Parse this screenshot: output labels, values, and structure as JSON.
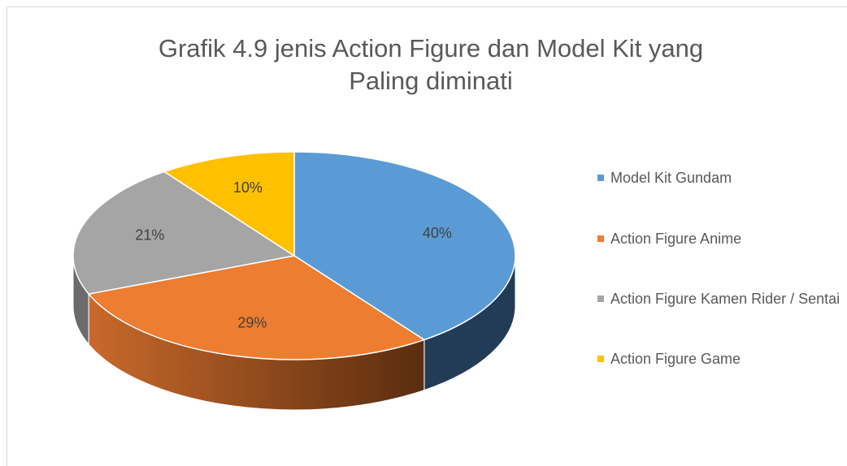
{
  "chart_data": {
    "type": "pie",
    "title": "Grafik 4.9 jenis Action Figure dan Model Kit yang Paling diminati",
    "categories": [
      "Model Kit Gundam",
      "Action Figure Anime",
      "Action Figure Kamen Rider / Sentai",
      "Action Figure Game"
    ],
    "values": [
      40,
      29,
      21,
      10
    ],
    "value_labels": [
      "40%",
      "29%",
      "21%",
      "10%"
    ],
    "colors": [
      "#5b9bd5",
      "#ed7d31",
      "#a5a5a5",
      "#ffc000"
    ],
    "legend": "right"
  }
}
